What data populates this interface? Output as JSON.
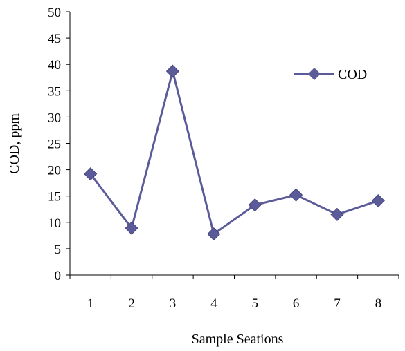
{
  "chart_data": {
    "type": "line",
    "categories": [
      "1",
      "2",
      "3",
      "4",
      "5",
      "6",
      "7",
      "8"
    ],
    "series": [
      {
        "name": "COD",
        "values": [
          19.2,
          8.9,
          38.7,
          7.8,
          13.3,
          15.2,
          11.5,
          14.1
        ]
      }
    ],
    "xlabel": "Sample Seations",
    "ylabel": "COD, ppm",
    "ylim": [
      0,
      50
    ],
    "yticks": [
      0,
      5,
      10,
      15,
      20,
      25,
      30,
      35,
      40,
      45,
      50
    ],
    "grid": false,
    "legend": "top-right",
    "series_color": "#5B5B99",
    "marker": "diamond"
  }
}
